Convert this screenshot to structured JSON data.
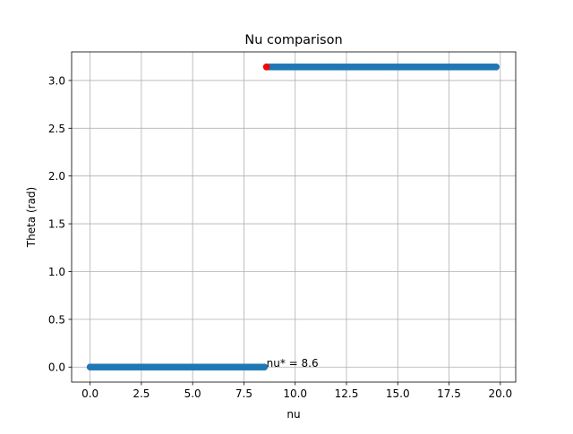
{
  "chart_data": {
    "type": "scatter",
    "title": "Nu comparison",
    "xlabel": "nu",
    "ylabel": "Theta (rad)",
    "xlim": [
      -0.9,
      20.75
    ],
    "ylim": [
      -0.157,
      3.299
    ],
    "x_ticks": [
      0.0,
      2.5,
      5.0,
      7.5,
      10.0,
      12.5,
      15.0,
      17.5,
      20.0
    ],
    "x_tick_labels": [
      "0.0",
      "2.5",
      "5.0",
      "7.5",
      "10.0",
      "12.5",
      "15.0",
      "17.5",
      "20.0"
    ],
    "y_ticks": [
      0.0,
      0.5,
      1.0,
      1.5,
      2.0,
      2.5,
      3.0
    ],
    "y_tick_labels": [
      "0.0",
      "0.5",
      "1.0",
      "1.5",
      "2.0",
      "2.5",
      "3.0"
    ],
    "grid": true,
    "series": [
      {
        "color": "#1f77b4",
        "x_start": 0.0,
        "x_end": 8.5,
        "x_step": 0.1,
        "y": 0.0
      },
      {
        "color": "#1f77b4",
        "x_start": 8.6,
        "x_end": 19.8,
        "x_step": 0.1,
        "y": 3.1416
      },
      {
        "color": "#ff0000",
        "x": [
          8.6
        ],
        "y": [
          3.1416
        ]
      }
    ],
    "annotations": [
      {
        "text": "nu* = 8.6",
        "x": 8.6,
        "y": 0.0
      }
    ]
  }
}
